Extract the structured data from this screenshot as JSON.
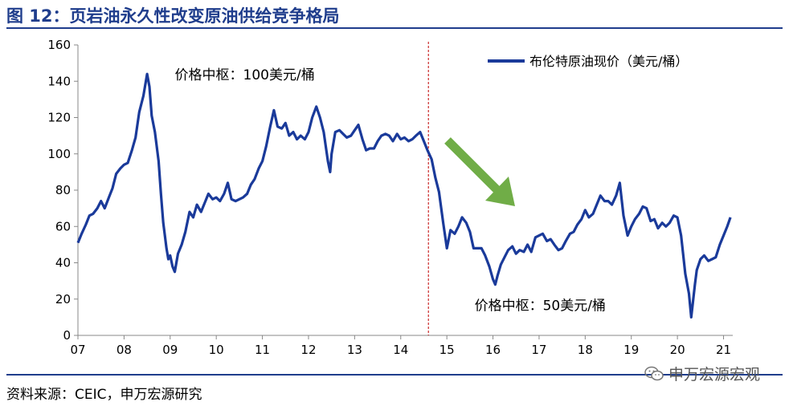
{
  "title": "图 12：页岩油永久性改变原油供给竞争格局",
  "source": "资料来源：CEIC，申万宏源研究",
  "watermark": "申万宏源宏观",
  "colors": {
    "title": "#1f3d8c",
    "series": "#1a3a9a",
    "arrow": "#70ad47",
    "divider": "#c00000"
  },
  "chart_data": {
    "type": "line",
    "xlim": [
      2007.0,
      2021.2
    ],
    "ylim": [
      0,
      160
    ],
    "x_ticks": [
      7,
      8,
      9,
      10,
      11,
      12,
      13,
      14,
      15,
      16,
      17,
      18,
      19,
      20,
      21
    ],
    "x_tick_labels": [
      "07",
      "08",
      "09",
      "10",
      "11",
      "12",
      "13",
      "14",
      "15",
      "16",
      "17",
      "18",
      "19",
      "20",
      "21"
    ],
    "y_ticks": [
      0,
      20,
      40,
      60,
      80,
      100,
      120,
      140,
      160
    ],
    "y_tick_labels": [
      "0",
      "20",
      "40",
      "60",
      "80",
      "100",
      "120",
      "140",
      "160"
    ],
    "grid": false,
    "legend": "top-right",
    "divider_x": 2014.6,
    "annotations": [
      {
        "text": "价格中枢：100美元/桶",
        "x": 2009.1,
        "y": 141
      },
      {
        "text": "价格中枢：50美元/桶",
        "x": 2015.6,
        "y": 14
      }
    ],
    "series": [
      {
        "name": "布伦特原油现价（美元/桶）",
        "points": [
          [
            2007.0,
            51
          ],
          [
            2007.08,
            56
          ],
          [
            2007.17,
            61
          ],
          [
            2007.25,
            66
          ],
          [
            2007.33,
            67
          ],
          [
            2007.42,
            70
          ],
          [
            2007.5,
            74
          ],
          [
            2007.58,
            70
          ],
          [
            2007.67,
            76
          ],
          [
            2007.75,
            81
          ],
          [
            2007.83,
            89
          ],
          [
            2007.92,
            92
          ],
          [
            2008.0,
            94
          ],
          [
            2008.08,
            95
          ],
          [
            2008.17,
            102
          ],
          [
            2008.25,
            109
          ],
          [
            2008.33,
            123
          ],
          [
            2008.42,
            132
          ],
          [
            2008.5,
            144
          ],
          [
            2008.55,
            137
          ],
          [
            2008.6,
            121
          ],
          [
            2008.67,
            112
          ],
          [
            2008.75,
            96
          ],
          [
            2008.8,
            78
          ],
          [
            2008.85,
            62
          ],
          [
            2008.92,
            48
          ],
          [
            2008.96,
            42
          ],
          [
            2009.0,
            44
          ],
          [
            2009.05,
            38
          ],
          [
            2009.1,
            35
          ],
          [
            2009.17,
            45
          ],
          [
            2009.25,
            50
          ],
          [
            2009.33,
            57
          ],
          [
            2009.42,
            68
          ],
          [
            2009.5,
            65
          ],
          [
            2009.58,
            72
          ],
          [
            2009.67,
            68
          ],
          [
            2009.75,
            73
          ],
          [
            2009.83,
            78
          ],
          [
            2009.92,
            75
          ],
          [
            2010.0,
            76
          ],
          [
            2010.08,
            74
          ],
          [
            2010.17,
            78
          ],
          [
            2010.25,
            84
          ],
          [
            2010.33,
            75
          ],
          [
            2010.42,
            74
          ],
          [
            2010.5,
            75
          ],
          [
            2010.58,
            76
          ],
          [
            2010.67,
            78
          ],
          [
            2010.75,
            83
          ],
          [
            2010.83,
            86
          ],
          [
            2010.92,
            92
          ],
          [
            2011.0,
            96
          ],
          [
            2011.08,
            104
          ],
          [
            2011.17,
            115
          ],
          [
            2011.25,
            124
          ],
          [
            2011.33,
            115
          ],
          [
            2011.42,
            114
          ],
          [
            2011.5,
            117
          ],
          [
            2011.58,
            110
          ],
          [
            2011.67,
            112
          ],
          [
            2011.75,
            108
          ],
          [
            2011.83,
            110
          ],
          [
            2011.92,
            108
          ],
          [
            2012.0,
            112
          ],
          [
            2012.08,
            120
          ],
          [
            2012.17,
            126
          ],
          [
            2012.25,
            120
          ],
          [
            2012.33,
            112
          ],
          [
            2012.42,
            96
          ],
          [
            2012.47,
            90
          ],
          [
            2012.5,
            100
          ],
          [
            2012.58,
            112
          ],
          [
            2012.67,
            113
          ],
          [
            2012.75,
            111
          ],
          [
            2012.83,
            109
          ],
          [
            2012.92,
            110
          ],
          [
            2013.0,
            113
          ],
          [
            2013.08,
            116
          ],
          [
            2013.17,
            108
          ],
          [
            2013.25,
            102
          ],
          [
            2013.33,
            103
          ],
          [
            2013.42,
            103
          ],
          [
            2013.5,
            107
          ],
          [
            2013.58,
            110
          ],
          [
            2013.67,
            111
          ],
          [
            2013.75,
            110
          ],
          [
            2013.83,
            107
          ],
          [
            2013.92,
            111
          ],
          [
            2014.0,
            108
          ],
          [
            2014.08,
            109
          ],
          [
            2014.17,
            107
          ],
          [
            2014.25,
            108
          ],
          [
            2014.33,
            110
          ],
          [
            2014.42,
            112
          ],
          [
            2014.5,
            107
          ],
          [
            2014.58,
            102
          ],
          [
            2014.67,
            97
          ],
          [
            2014.75,
            87
          ],
          [
            2014.83,
            79
          ],
          [
            2014.92,
            62
          ],
          [
            2015.0,
            48
          ],
          [
            2015.08,
            58
          ],
          [
            2015.17,
            56
          ],
          [
            2015.25,
            60
          ],
          [
            2015.33,
            65
          ],
          [
            2015.42,
            62
          ],
          [
            2015.5,
            57
          ],
          [
            2015.58,
            48
          ],
          [
            2015.67,
            48
          ],
          [
            2015.75,
            48
          ],
          [
            2015.83,
            44
          ],
          [
            2015.92,
            38
          ],
          [
            2016.0,
            31
          ],
          [
            2016.05,
            28
          ],
          [
            2016.1,
            33
          ],
          [
            2016.17,
            39
          ],
          [
            2016.25,
            43
          ],
          [
            2016.33,
            47
          ],
          [
            2016.42,
            49
          ],
          [
            2016.5,
            45
          ],
          [
            2016.58,
            47
          ],
          [
            2016.67,
            46
          ],
          [
            2016.75,
            50
          ],
          [
            2016.83,
            46
          ],
          [
            2016.92,
            54
          ],
          [
            2017.0,
            55
          ],
          [
            2017.08,
            56
          ],
          [
            2017.17,
            52
          ],
          [
            2017.25,
            53
          ],
          [
            2017.33,
            50
          ],
          [
            2017.42,
            47
          ],
          [
            2017.5,
            48
          ],
          [
            2017.58,
            52
          ],
          [
            2017.67,
            56
          ],
          [
            2017.75,
            57
          ],
          [
            2017.83,
            61
          ],
          [
            2017.92,
            64
          ],
          [
            2018.0,
            69
          ],
          [
            2018.08,
            65
          ],
          [
            2018.17,
            67
          ],
          [
            2018.25,
            72
          ],
          [
            2018.33,
            77
          ],
          [
            2018.42,
            74
          ],
          [
            2018.5,
            74
          ],
          [
            2018.58,
            72
          ],
          [
            2018.67,
            77
          ],
          [
            2018.75,
            84
          ],
          [
            2018.83,
            66
          ],
          [
            2018.92,
            55
          ],
          [
            2019.0,
            60
          ],
          [
            2019.08,
            64
          ],
          [
            2019.17,
            67
          ],
          [
            2019.25,
            71
          ],
          [
            2019.33,
            70
          ],
          [
            2019.42,
            63
          ],
          [
            2019.5,
            64
          ],
          [
            2019.58,
            59
          ],
          [
            2019.67,
            62
          ],
          [
            2019.75,
            60
          ],
          [
            2019.83,
            62
          ],
          [
            2019.92,
            66
          ],
          [
            2020.0,
            65
          ],
          [
            2020.08,
            55
          ],
          [
            2020.17,
            34
          ],
          [
            2020.25,
            23
          ],
          [
            2020.3,
            10
          ],
          [
            2020.38,
            28
          ],
          [
            2020.42,
            36
          ],
          [
            2020.5,
            42
          ],
          [
            2020.58,
            44
          ],
          [
            2020.67,
            41
          ],
          [
            2020.75,
            42
          ],
          [
            2020.83,
            43
          ],
          [
            2020.92,
            50
          ],
          [
            2021.0,
            55
          ],
          [
            2021.08,
            60
          ],
          [
            2021.15,
            65
          ]
        ]
      }
    ]
  }
}
